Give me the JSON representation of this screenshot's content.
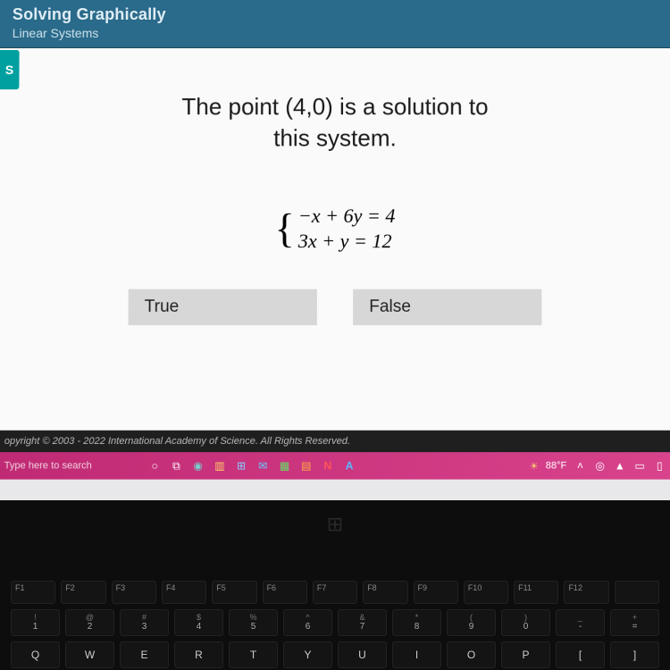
{
  "header": {
    "title": "Solving Graphically",
    "subtitle": "Linear Systems",
    "side_tab": "S"
  },
  "question": {
    "line1": "The point (4,0) is a solution to",
    "line2": "this system."
  },
  "system": {
    "eq1": "−x + 6y = 4",
    "eq2": "3x + y = 12"
  },
  "answers": {
    "true_label": "True",
    "false_label": "False"
  },
  "footer": {
    "copyright": "opyright © 2003 - 2022 International Academy of Science.  All Rights Reserved."
  },
  "taskbar": {
    "search_placeholder": "Type here to search",
    "weather": "88°F"
  },
  "keyboard": {
    "fn": [
      "F1",
      "F2",
      "F3",
      "F4",
      "F5",
      "F6",
      "F7",
      "F8",
      "F9",
      "F10",
      "F11",
      "F12",
      ""
    ],
    "num_top": [
      "!",
      "@",
      "#",
      "$",
      "%",
      "^",
      "&",
      "*",
      "(",
      ")",
      "_",
      "+"
    ],
    "num": [
      "1",
      "2",
      "3",
      "4",
      "5",
      "6",
      "7",
      "8",
      "9",
      "0",
      "-",
      "="
    ],
    "letters": [
      "Q",
      "W",
      "E",
      "R",
      "T",
      "Y",
      "U",
      "I",
      "O",
      "P",
      "[",
      "]"
    ]
  },
  "colors": {
    "header_bg": "#2a6a8a",
    "side_tab_bg": "#00a0a0",
    "content_bg": "#fafafa",
    "button_bg": "#d7d7d7",
    "taskbar_bg": "#c02a74"
  }
}
